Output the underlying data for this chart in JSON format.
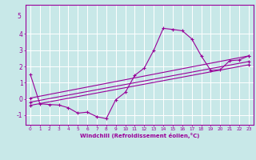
{
  "xlabel": "Windchill (Refroidissement éolien,°C)",
  "xlim": [
    -0.5,
    23.5
  ],
  "ylim": [
    -1.6,
    5.8
  ],
  "yticks": [
    -1,
    0,
    1,
    2,
    3,
    4
  ],
  "xticks": [
    0,
    1,
    2,
    3,
    4,
    5,
    6,
    7,
    8,
    9,
    10,
    11,
    12,
    13,
    14,
    15,
    16,
    17,
    18,
    19,
    20,
    21,
    22,
    23
  ],
  "bg_color": "#c8e8e8",
  "line_color": "#990099",
  "grid_color": "#ffffff",
  "curve_x": [
    0,
    1,
    2,
    3,
    4,
    5,
    6,
    7,
    8,
    9,
    10,
    11,
    12,
    13,
    14,
    15,
    16,
    17,
    18,
    19,
    20,
    21,
    22,
    23
  ],
  "curve_y": [
    1.5,
    -0.3,
    -0.35,
    -0.38,
    -0.55,
    -0.88,
    -0.82,
    -1.1,
    -1.22,
    -0.05,
    0.4,
    1.45,
    1.9,
    3.0,
    4.35,
    4.28,
    4.2,
    3.7,
    2.65,
    1.75,
    1.8,
    2.35,
    2.4,
    2.65
  ],
  "line3_x": [
    0,
    23
  ],
  "line3_y": [
    0.05,
    2.65
  ],
  "line4_x": [
    0,
    23
  ],
  "line4_y": [
    -0.2,
    2.3
  ],
  "line5_x": [
    0,
    23
  ],
  "line5_y": [
    -0.4,
    2.1
  ],
  "xlabel_fontsize": 5.0,
  "tick_fontsize_x": 4.2,
  "tick_fontsize_y": 5.5,
  "ytop_label": "5"
}
